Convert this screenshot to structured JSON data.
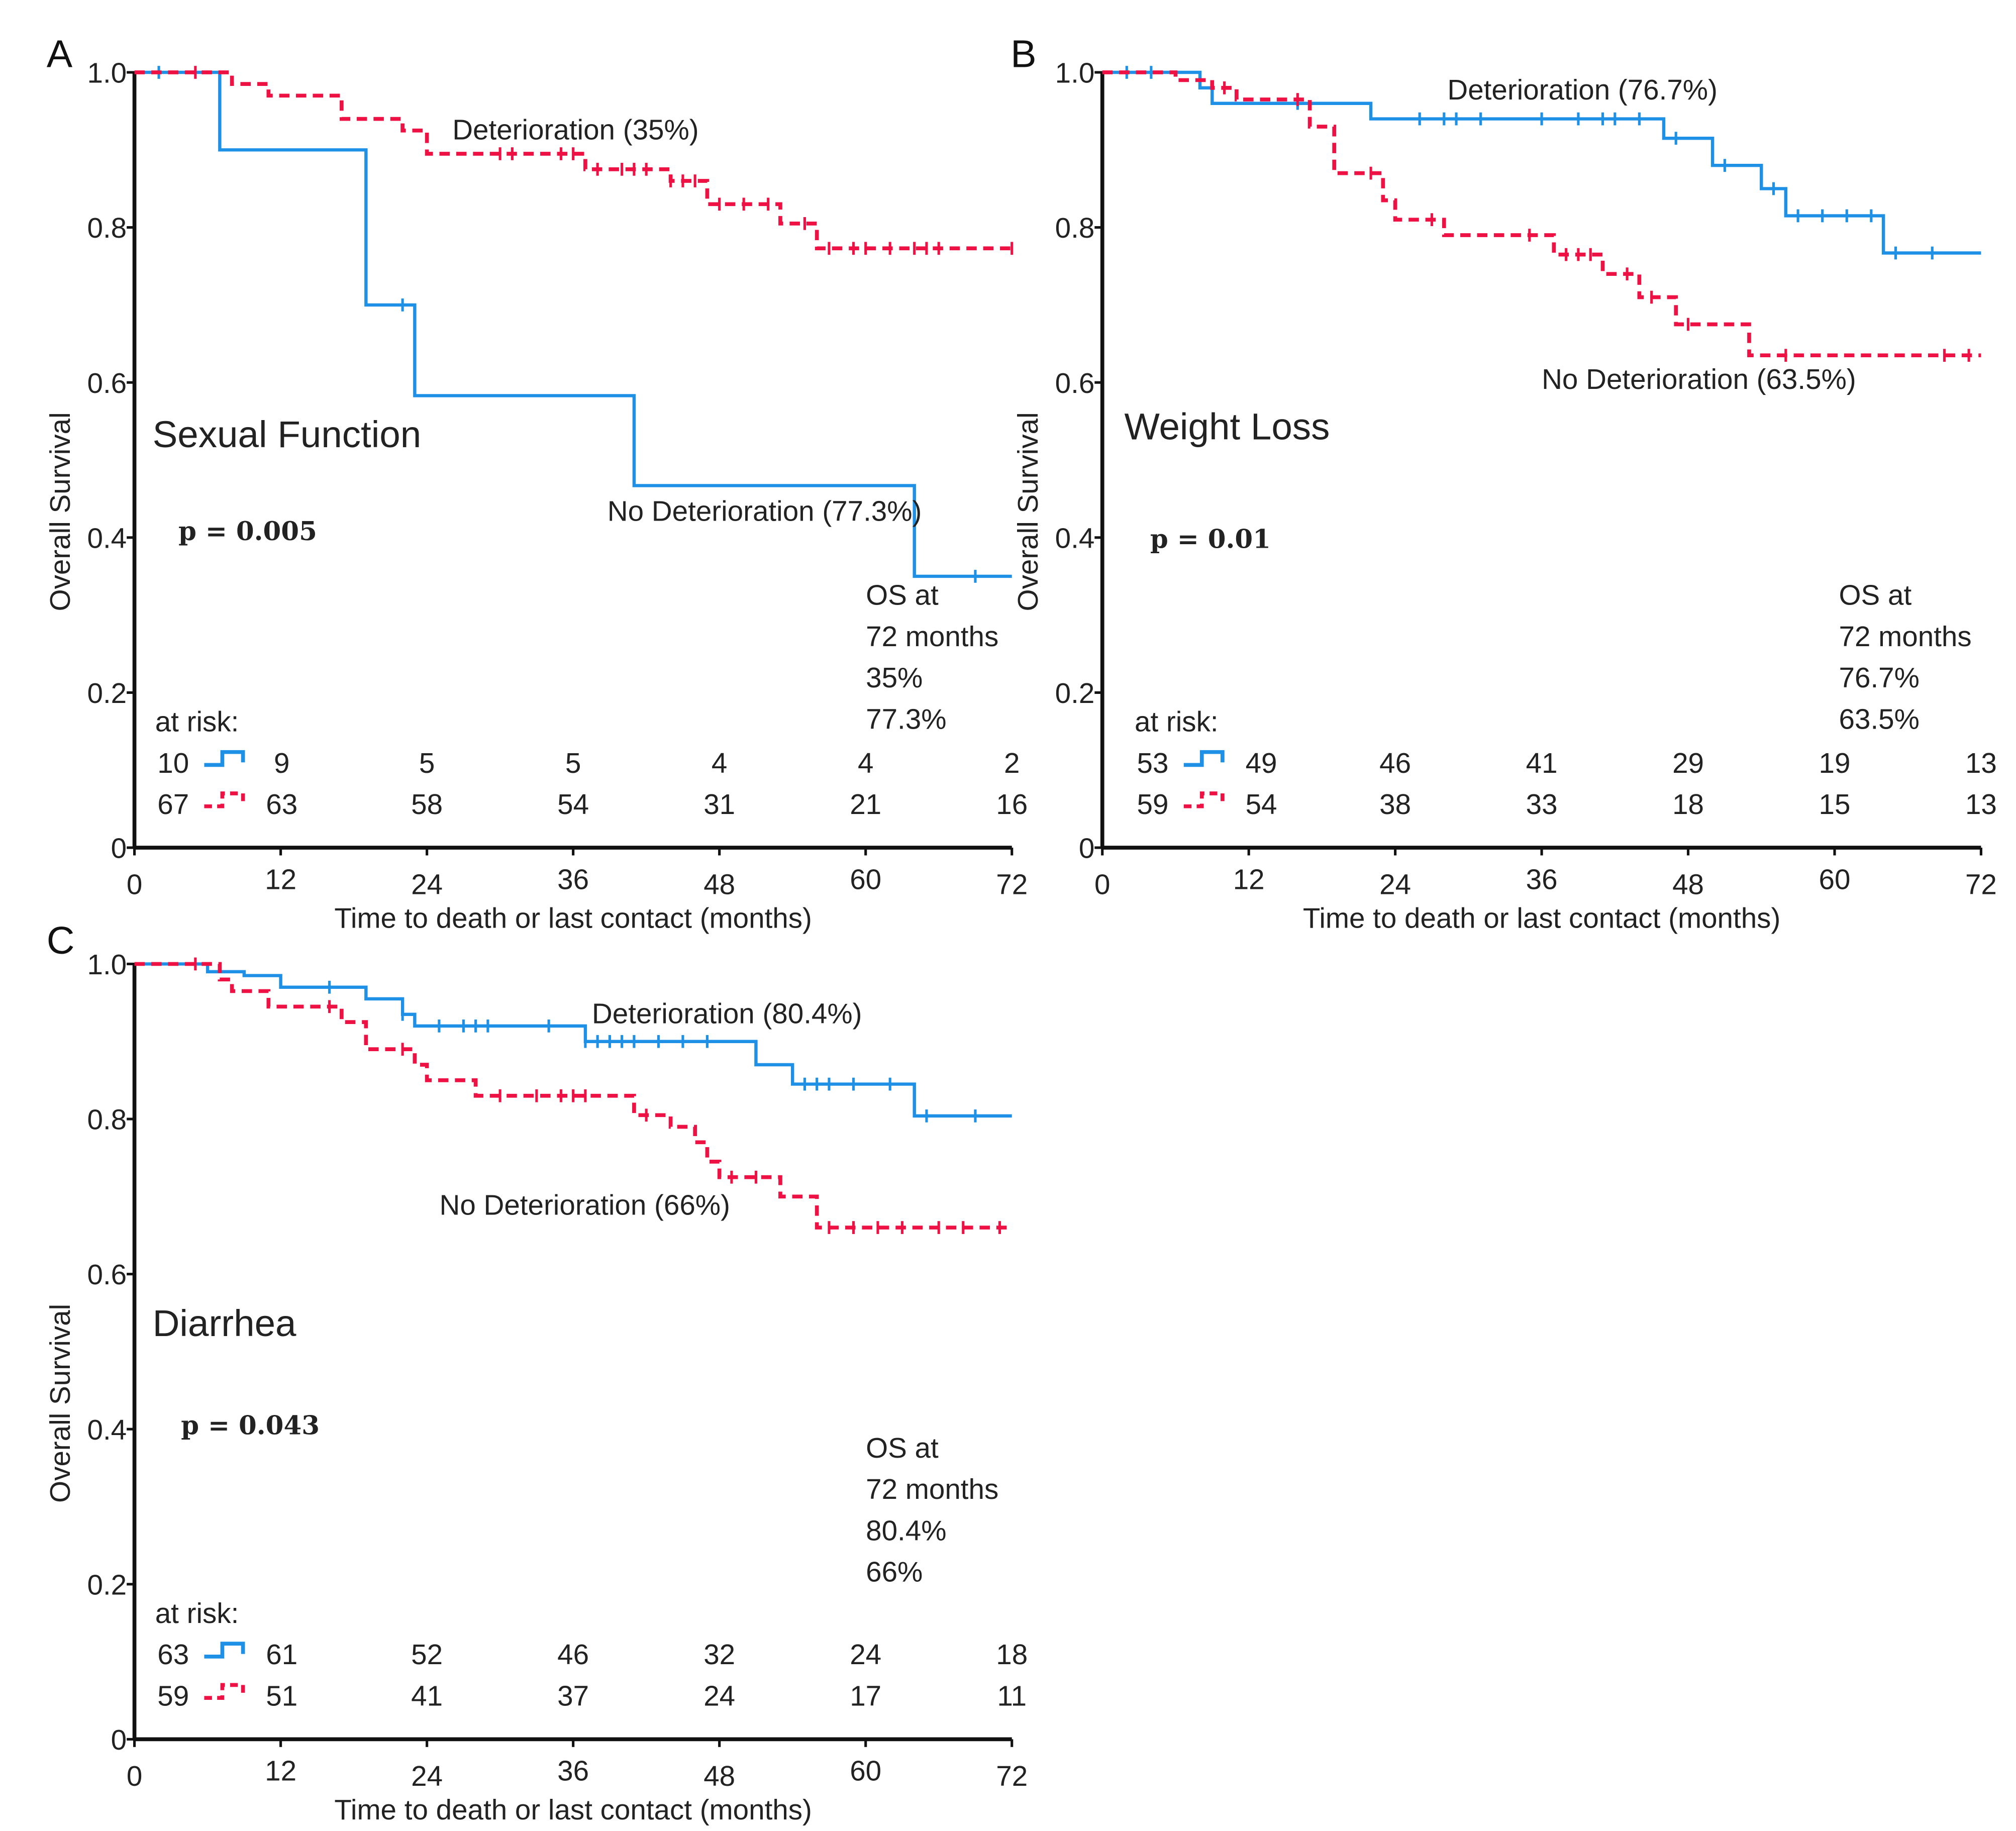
{
  "colors": {
    "deterioration": "#1e90e6",
    "no_deterioration": "#ee1144"
  },
  "chart_data": [
    {
      "type": "line",
      "panel": "A",
      "title": "Sexual Function",
      "p_value": "p = 0.005",
      "xlabel": "Time to death or last contact (months)",
      "ylabel": "Overall Survival",
      "xlim": [
        0,
        72
      ],
      "ylim": [
        0,
        1
      ],
      "xticks": [
        "0",
        "12",
        "24",
        "36",
        "48",
        "60",
        "72"
      ],
      "yticks": [
        "0",
        "0.2",
        "0.4",
        "0.6",
        "0.8",
        "1.0"
      ],
      "os_header": [
        "OS at",
        "72 months"
      ],
      "series": [
        {
          "name": "Deterioration (35%)",
          "os72": "35%",
          "dashed": false,
          "steps": [
            [
              0,
              1
            ],
            [
              7,
              0.9
            ],
            [
              19,
              0.7
            ],
            [
              23,
              0.583
            ],
            [
              41,
              0.467
            ],
            [
              64,
              0.35
            ],
            [
              72,
              0.35
            ]
          ],
          "censored": [
            2,
            22,
            69
          ],
          "at_risk": [
            "10",
            "9",
            "5",
            "5",
            "4",
            "4",
            "2"
          ]
        },
        {
          "name": "No Deterioration (77.3%)",
          "os72": "77.3%",
          "dashed": true,
          "steps": [
            [
              0,
              1
            ],
            [
              8,
              0.985
            ],
            [
              11,
              0.97
            ],
            [
              17,
              0.94
            ],
            [
              22,
              0.925
            ],
            [
              24,
              0.895
            ],
            [
              37,
              0.875
            ],
            [
              44,
              0.86
            ],
            [
              47,
              0.83
            ],
            [
              53,
              0.805
            ],
            [
              56,
              0.773
            ],
            [
              72,
              0.773
            ]
          ],
          "censored": [
            5,
            30,
            31,
            35,
            36,
            38,
            40,
            41,
            42,
            44,
            45,
            46,
            48,
            50,
            52,
            55,
            57,
            59,
            60,
            62,
            64,
            65,
            66,
            72
          ],
          "at_risk": [
            "67",
            "63",
            "58",
            "54",
            "31",
            "21",
            "16"
          ]
        }
      ],
      "at_risk_label": "at risk:"
    },
    {
      "type": "line",
      "panel": "B",
      "title": "Weight Loss",
      "p_value": "p = 0.01",
      "xlabel": "Time to death or last contact (months)",
      "ylabel": "Overall Survival",
      "xlim": [
        0,
        72
      ],
      "ylim": [
        0,
        1
      ],
      "xticks": [
        "0",
        "12",
        "24",
        "36",
        "48",
        "60",
        "72"
      ],
      "yticks": [
        "0",
        "0.2",
        "0.4",
        "0.6",
        "0.8",
        "1.0"
      ],
      "os_header": [
        "OS at",
        "72 months"
      ],
      "series": [
        {
          "name": "Deterioration (76.7%)",
          "os72": "76.7%",
          "dashed": false,
          "steps": [
            [
              0,
              1
            ],
            [
              8,
              0.98
            ],
            [
              9,
              0.96
            ],
            [
              22,
              0.94
            ],
            [
              46,
              0.915
            ],
            [
              50,
              0.88
            ],
            [
              54,
              0.85
            ],
            [
              56,
              0.815
            ],
            [
              64,
              0.767
            ],
            [
              72,
              0.767
            ]
          ],
          "censored": [
            2,
            4,
            16,
            26,
            28,
            29,
            31,
            36,
            39,
            41,
            42,
            44,
            47,
            51,
            55,
            57,
            59,
            61,
            63,
            65,
            68
          ],
          "at_risk": [
            "53",
            "49",
            "46",
            "41",
            "29",
            "19",
            "13"
          ]
        },
        {
          "name": "No Deterioration (63.5%)",
          "os72": "63.5%",
          "dashed": true,
          "steps": [
            [
              0,
              1
            ],
            [
              6,
              0.99
            ],
            [
              9,
              0.98
            ],
            [
              11,
              0.965
            ],
            [
              17,
              0.93
            ],
            [
              19,
              0.87
            ],
            [
              23,
              0.835
            ],
            [
              24,
              0.81
            ],
            [
              28,
              0.79
            ],
            [
              37,
              0.765
            ],
            [
              41,
              0.74
            ],
            [
              44,
              0.71
            ],
            [
              47,
              0.675
            ],
            [
              53,
              0.635
            ],
            [
              72,
              0.635
            ]
          ],
          "censored": [
            10,
            16,
            22,
            27,
            35,
            38,
            39,
            40,
            43,
            45,
            48,
            56,
            69,
            71
          ],
          "at_risk": [
            "59",
            "54",
            "38",
            "33",
            "18",
            "15",
            "13"
          ]
        }
      ],
      "at_risk_label": "at risk:"
    },
    {
      "type": "line",
      "panel": "C",
      "title": "Diarrhea",
      "p_value": "p = 0.043",
      "xlabel": "Time to death or last contact (months)",
      "ylabel": "Overall Survival",
      "xlim": [
        0,
        72
      ],
      "ylim": [
        0,
        1
      ],
      "xticks": [
        "0",
        "12",
        "24",
        "36",
        "48",
        "60",
        "72"
      ],
      "yticks": [
        "0",
        "0.2",
        "0.4",
        "0.6",
        "0.8",
        "1.0"
      ],
      "os_header": [
        "OS at",
        "72 months"
      ],
      "series": [
        {
          "name": "Deterioration (80.4%)",
          "os72": "80.4%",
          "dashed": false,
          "steps": [
            [
              0,
              1
            ],
            [
              6,
              0.99
            ],
            [
              9,
              0.985
            ],
            [
              12,
              0.97
            ],
            [
              19,
              0.955
            ],
            [
              22,
              0.935
            ],
            [
              23,
              0.92
            ],
            [
              37,
              0.9
            ],
            [
              51,
              0.87
            ],
            [
              54,
              0.845
            ],
            [
              64,
              0.804
            ],
            [
              72,
              0.804
            ]
          ],
          "censored": [
            16,
            22,
            25,
            27,
            28,
            29,
            34,
            37,
            38,
            39,
            40,
            41,
            43,
            45,
            47,
            55,
            56,
            57,
            59,
            62,
            65,
            69
          ],
          "at_risk": [
            "63",
            "61",
            "52",
            "46",
            "32",
            "24",
            "18"
          ]
        },
        {
          "name": "No Deterioration (66%)",
          "os72": "66%",
          "dashed": true,
          "steps": [
            [
              0,
              1
            ],
            [
              7,
              0.98
            ],
            [
              8,
              0.965
            ],
            [
              11,
              0.945
            ],
            [
              17,
              0.925
            ],
            [
              19,
              0.89
            ],
            [
              23,
              0.87
            ],
            [
              24,
              0.85
            ],
            [
              28,
              0.83
            ],
            [
              41,
              0.805
            ],
            [
              44,
              0.79
            ],
            [
              46,
              0.77
            ],
            [
              47,
              0.745
            ],
            [
              48,
              0.725
            ],
            [
              53,
              0.7
            ],
            [
              56,
              0.66
            ],
            [
              72,
              0.66
            ]
          ],
          "censored": [
            5,
            16,
            22,
            30,
            33,
            35,
            36,
            37,
            42,
            49,
            51,
            57,
            59,
            61,
            63,
            66,
            68,
            71
          ],
          "at_risk": [
            "59",
            "51",
            "41",
            "37",
            "24",
            "17",
            "11"
          ]
        }
      ],
      "at_risk_label": "at risk:"
    }
  ]
}
